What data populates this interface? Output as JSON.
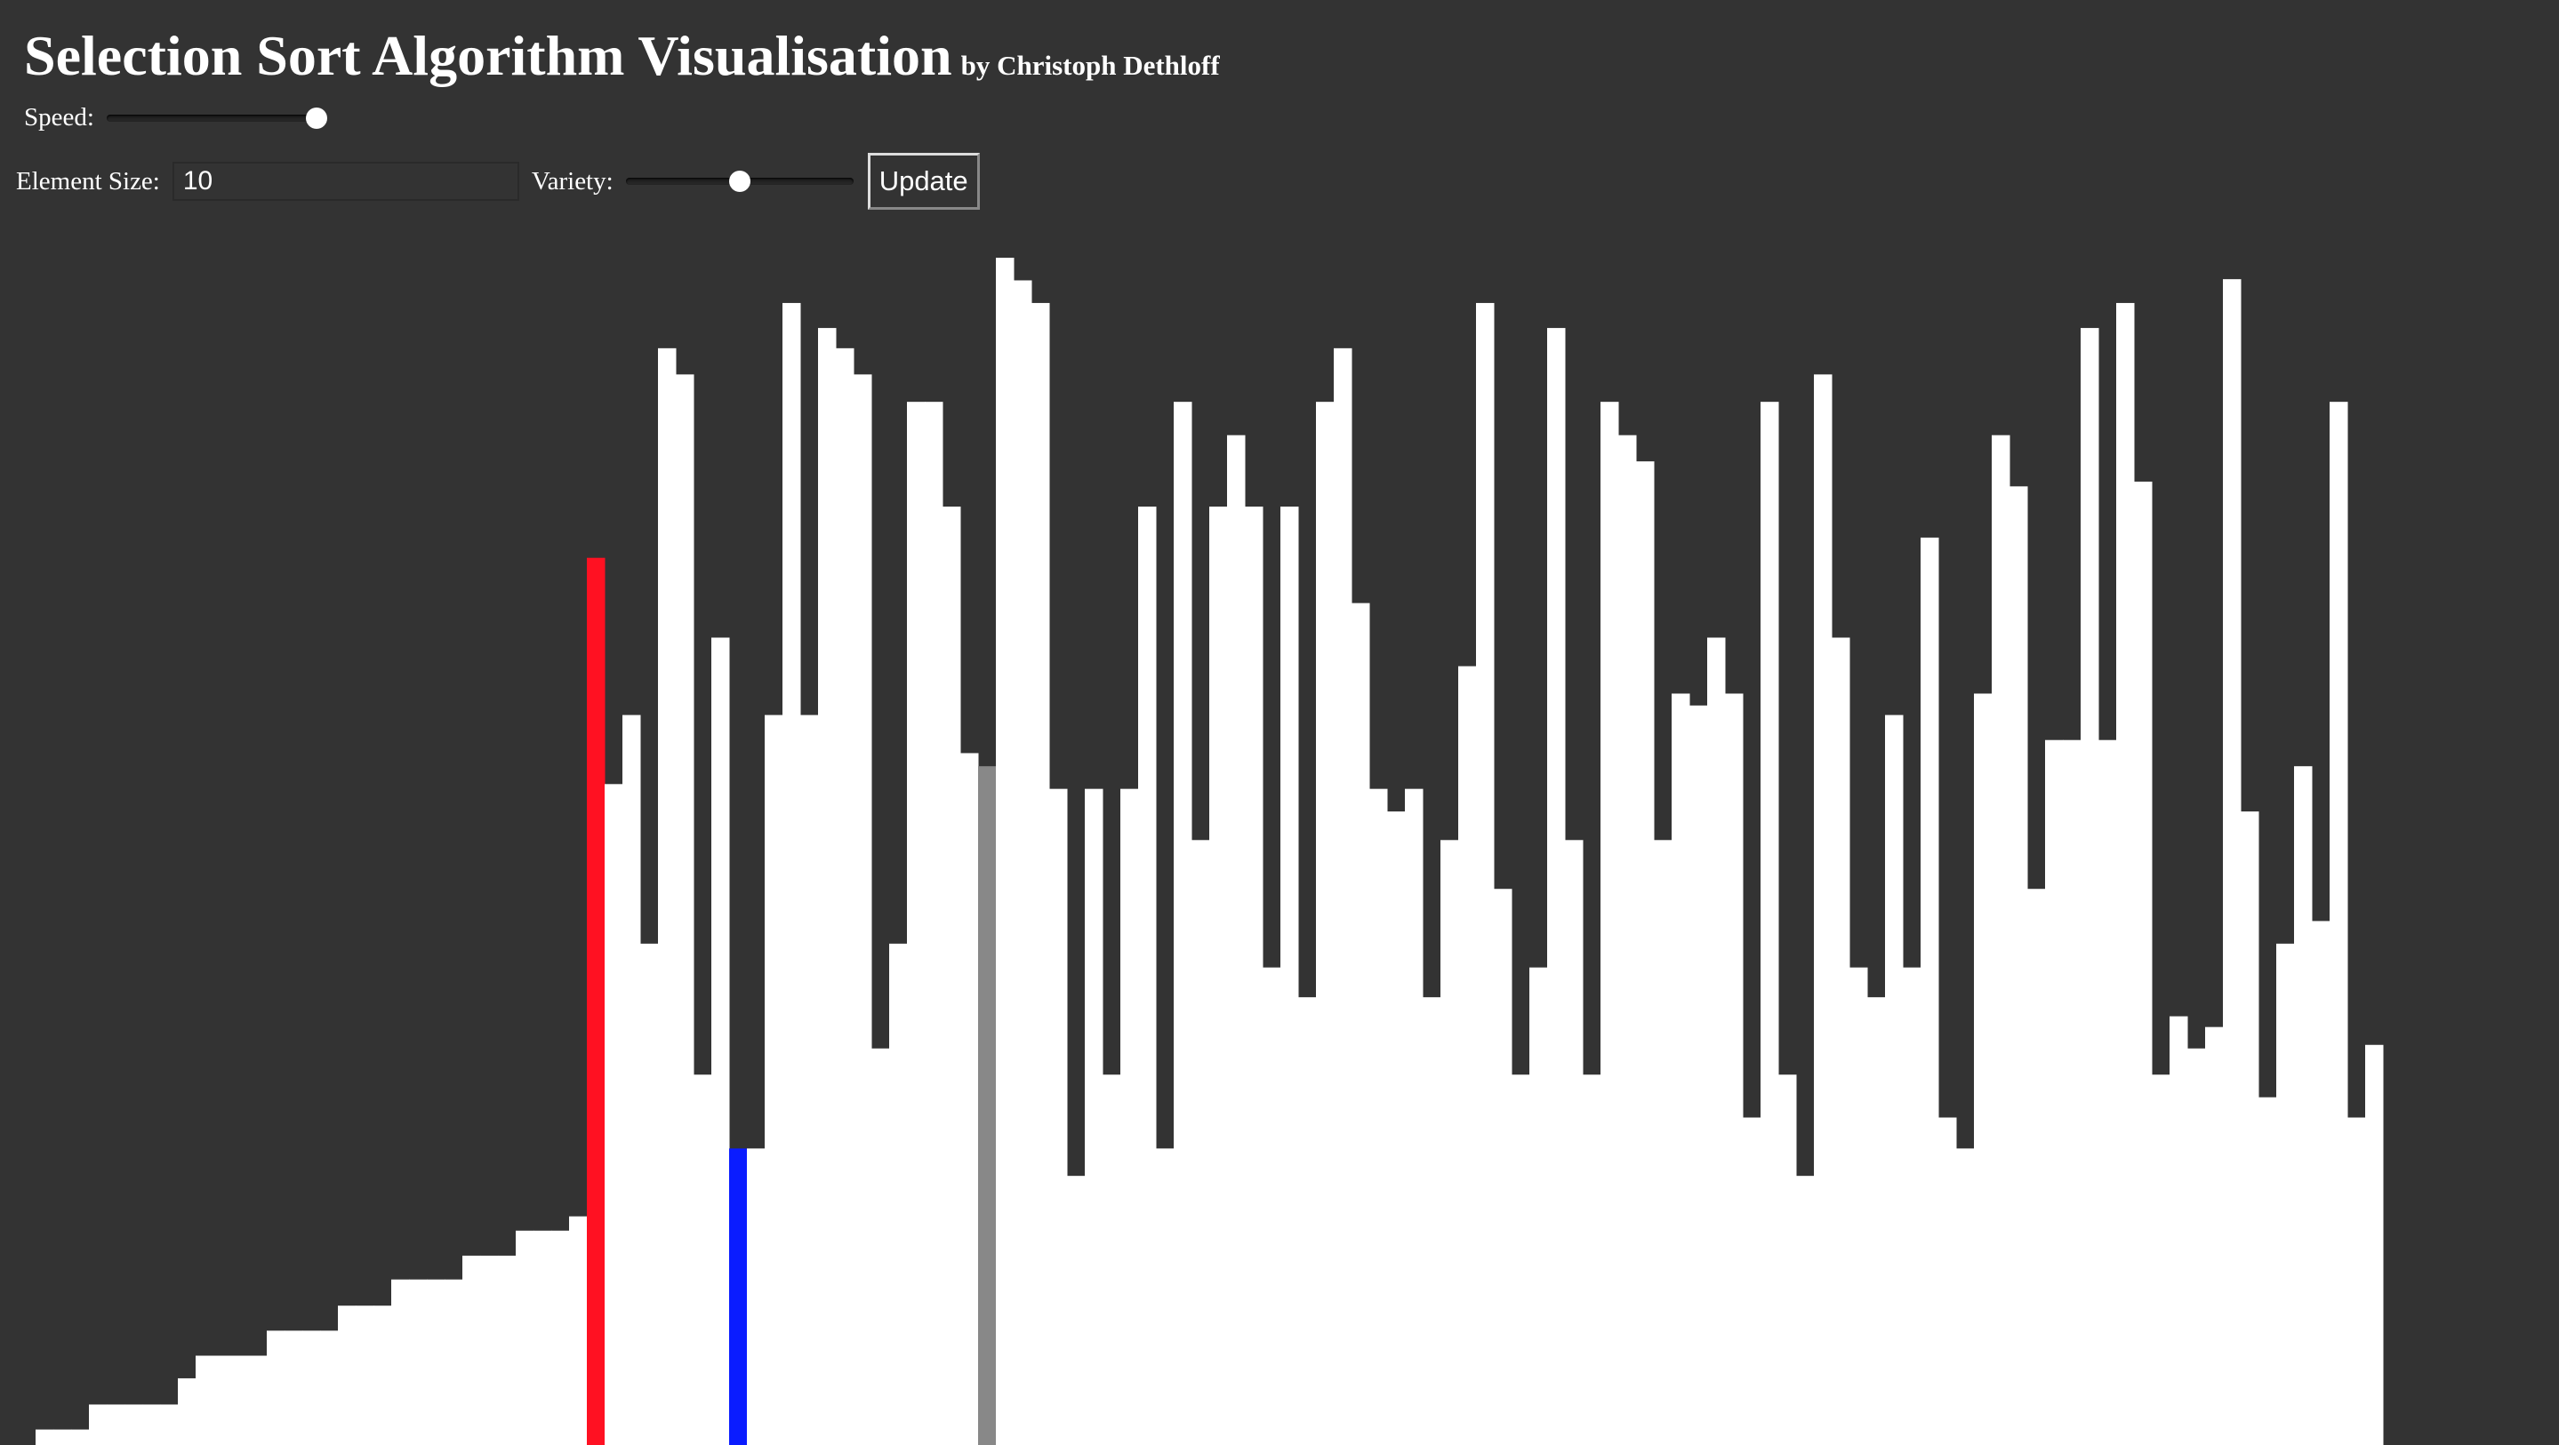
{
  "header": {
    "title": "Selection Sort Algorithm Visualisation",
    "byline": "by Christoph Dethloff"
  },
  "controls": {
    "speed_label": "Speed:",
    "speed_value": 1.0,
    "element_size_label": "Element Size:",
    "element_size_value": "10",
    "variety_label": "Variety:",
    "variety_value": 0.5,
    "update_label": "Update"
  },
  "colors": {
    "background": "#333333",
    "bar": "#ffffff",
    "current_min": "#ff1122",
    "comparing": "#0a1cff",
    "scan_pointer": "#888888"
  },
  "chart_data": {
    "type": "bar",
    "ylim": [
      0,
      100
    ],
    "highlights": {
      "current_min_index": 33,
      "comparing_index": 41,
      "scan_pointer_index": 55
    },
    "values": [
      0,
      0,
      1.3,
      1.3,
      1.3,
      3.4,
      3.4,
      3.4,
      3.4,
      3.4,
      5.6,
      7.5,
      7.5,
      7.5,
      7.5,
      9.6,
      9.6,
      9.6,
      9.6,
      11.7,
      11.7,
      11.7,
      13.9,
      13.9,
      13.9,
      13.9,
      15.9,
      15.9,
      15.9,
      18.0,
      18.0,
      18.0,
      19.2,
      74.5,
      55.5,
      61.3,
      42.1,
      92.1,
      89.9,
      31.1,
      67.8,
      24.9,
      24.9,
      61.3,
      95.9,
      61.3,
      93.8,
      92.1,
      89.9,
      33.3,
      42.1,
      87.6,
      87.6,
      78.8,
      58.1,
      57.0,
      99.7,
      97.8,
      95.9,
      55.1,
      22.6,
      55.1,
      31.1,
      55.1,
      78.8,
      24.9,
      87.6,
      50.8,
      78.8,
      84.8,
      78.8,
      40.1,
      78.8,
      37.6,
      87.6,
      92.1,
      70.7,
      55.1,
      53.2,
      55.1,
      37.6,
      50.8,
      65.4,
      95.9,
      46.7,
      31.1,
      40.1,
      93.8,
      50.8,
      31.1,
      87.6,
      84.8,
      82.6,
      50.8,
      63.1,
      62.1,
      67.8,
      63.1,
      27.5,
      87.6,
      31.1,
      22.6,
      89.9,
      67.8,
      40.1,
      37.6,
      61.3,
      40.1,
      76.2,
      27.5,
      24.9,
      63.1,
      84.8,
      80.5,
      46.7,
      59.2,
      59.2,
      93.8,
      59.2,
      95.9,
      80.9,
      31.1,
      36.0,
      33.3,
      35.1,
      97.9,
      53.2,
      29.2,
      42.1,
      57.0,
      44.0,
      87.6,
      27.5,
      33.6
    ]
  }
}
